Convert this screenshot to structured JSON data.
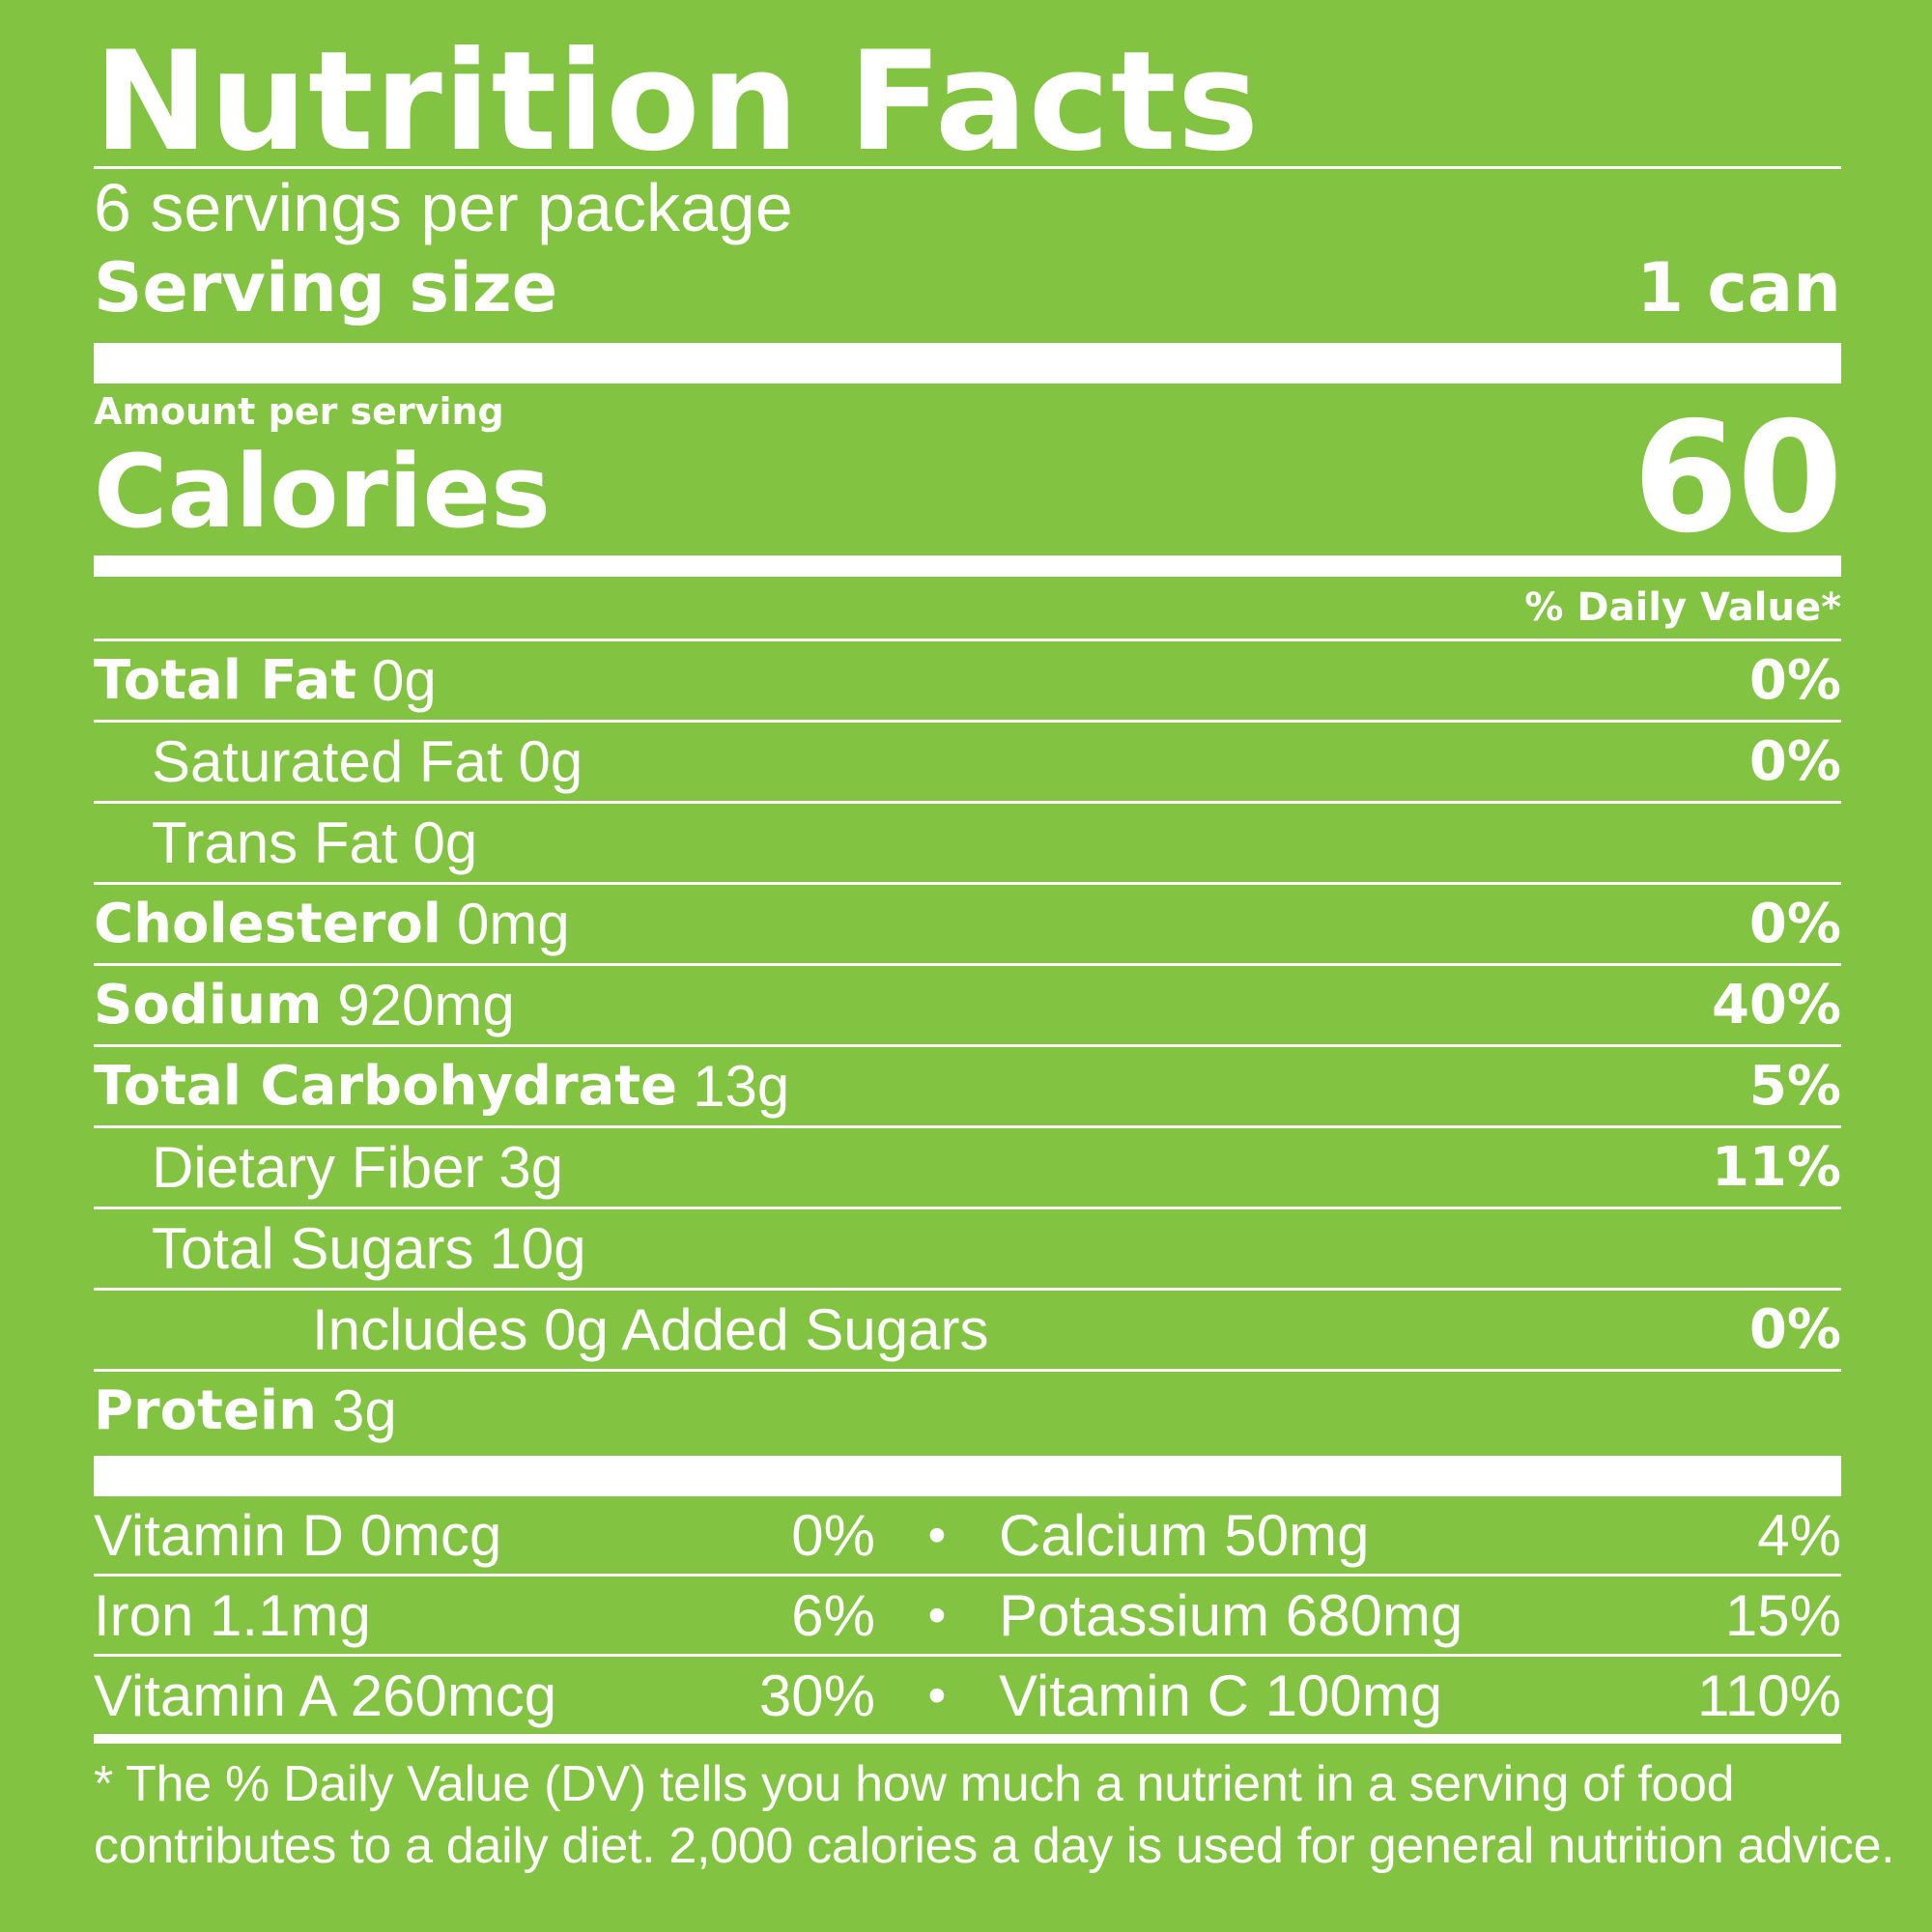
{
  "title": "Nutrition Facts",
  "servings_per_package": "6 servings per package",
  "serving_size": {
    "label": "Serving size",
    "value": "1 can"
  },
  "amount_per_serving": "Amount per serving",
  "calories": {
    "label": "Calories",
    "value": "60"
  },
  "daily_value_header": "% Daily Value*",
  "nutrients": [
    {
      "name": "Total Fat",
      "amount": "0g",
      "dv": "0%"
    },
    {
      "name": "Saturated Fat",
      "amount": "0g",
      "dv": "0%"
    },
    {
      "name": "Trans Fat",
      "amount": "0g",
      "dv": ""
    },
    {
      "name": "Cholesterol",
      "amount": "0mg",
      "dv": "0%"
    },
    {
      "name": "Sodium",
      "amount": "920mg",
      "dv": "40%"
    },
    {
      "name": "Total Carbohydrate",
      "amount": "13g",
      "dv": "5%"
    },
    {
      "name": "Dietary Fiber",
      "amount": "3g",
      "dv": "11%"
    },
    {
      "name": "Total Sugars",
      "amount": "10g",
      "dv": ""
    },
    {
      "name": "Includes 0g Added Sugars",
      "amount": "",
      "dv": "0%"
    },
    {
      "name": "Protein",
      "amount": "3g",
      "dv": ""
    }
  ],
  "vitamins": [
    {
      "left": {
        "label": "Vitamin D 0mcg",
        "dv": "0%"
      },
      "right": {
        "label": "Calcium 50mg",
        "dv": "4%"
      }
    },
    {
      "left": {
        "label": "Iron 1.1mg",
        "dv": "6%"
      },
      "right": {
        "label": "Potassium 680mg",
        "dv": "15%"
      }
    },
    {
      "left": {
        "label": "Vitamin A 260mcg",
        "dv": "30%"
      },
      "right": {
        "label": "Vitamin C 100mg",
        "dv": "110%"
      }
    }
  ],
  "bullet": "•",
  "footnote": {
    "line1": "* The % Daily Value (DV) tells you how much a nutrient in a serving of food",
    "line2": "contributes to a daily diet. 2,000 calories a day is used for general nutrition advice."
  },
  "colors": {
    "background": "#82c341",
    "text": "#ffffff"
  }
}
